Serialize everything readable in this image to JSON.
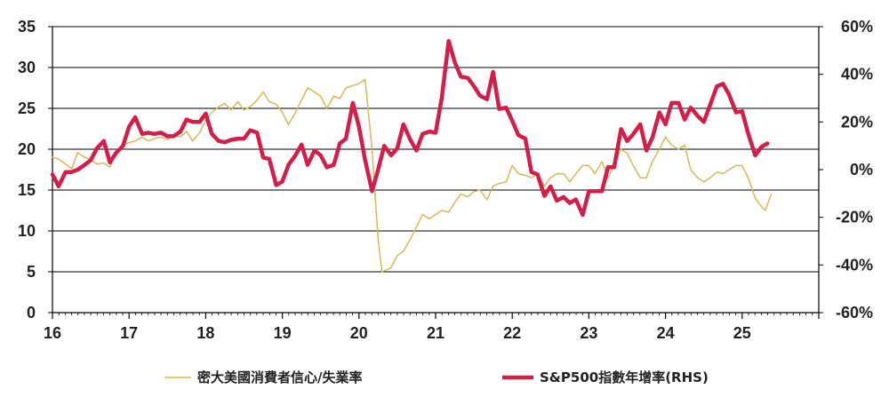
{
  "chart_data": {
    "type": "line",
    "x_ticks": [
      "16",
      "17",
      "18",
      "19",
      "20",
      "21",
      "22",
      "23",
      "24",
      "25"
    ],
    "y_left": {
      "ticks": [
        "0",
        "5",
        "10",
        "15",
        "20",
        "25",
        "30",
        "35"
      ],
      "range": [
        0,
        35
      ]
    },
    "y_right": {
      "ticks": [
        "-60%",
        "-40%",
        "-20%",
        "0%",
        "20%",
        "40%",
        "60%"
      ],
      "range": [
        -60,
        60
      ]
    },
    "x_range": [
      2016.0,
      2026.0
    ],
    "grid": "horizontal",
    "legend_position": "bottom",
    "series": [
      {
        "name": "密大美國消費者信心/失業率",
        "axis": "left",
        "color": "#d4b95a",
        "width": 1.5,
        "points": [
          [
            2016.0,
            19.0
          ],
          [
            2016.08,
            18.8
          ],
          [
            2016.17,
            18.2
          ],
          [
            2016.25,
            17.6
          ],
          [
            2016.33,
            19.6
          ],
          [
            2016.42,
            19.0
          ],
          [
            2016.5,
            18.7
          ],
          [
            2016.58,
            18.2
          ],
          [
            2016.67,
            18.3
          ],
          [
            2016.75,
            17.8
          ],
          [
            2016.83,
            19.5
          ],
          [
            2016.92,
            20.5
          ],
          [
            2017.0,
            20.8
          ],
          [
            2017.08,
            21.0
          ],
          [
            2017.17,
            21.5
          ],
          [
            2017.25,
            21.0
          ],
          [
            2017.33,
            21.3
          ],
          [
            2017.42,
            21.5
          ],
          [
            2017.5,
            21.2
          ],
          [
            2017.58,
            21.7
          ],
          [
            2017.67,
            21.5
          ],
          [
            2017.75,
            22.2
          ],
          [
            2017.83,
            21.0
          ],
          [
            2017.92,
            22.0
          ],
          [
            2018.0,
            23.5
          ],
          [
            2018.08,
            24.5
          ],
          [
            2018.17,
            25.2
          ],
          [
            2018.25,
            25.6
          ],
          [
            2018.33,
            24.8
          ],
          [
            2018.42,
            25.8
          ],
          [
            2018.5,
            24.8
          ],
          [
            2018.58,
            25.2
          ],
          [
            2018.67,
            26.0
          ],
          [
            2018.75,
            27.0
          ],
          [
            2018.83,
            25.8
          ],
          [
            2018.92,
            25.5
          ],
          [
            2019.0,
            24.5
          ],
          [
            2019.08,
            23.0
          ],
          [
            2019.17,
            24.5
          ],
          [
            2019.25,
            26.0
          ],
          [
            2019.33,
            27.5
          ],
          [
            2019.42,
            27.0
          ],
          [
            2019.5,
            26.5
          ],
          [
            2019.58,
            25.0
          ],
          [
            2019.67,
            26.5
          ],
          [
            2019.75,
            26.2
          ],
          [
            2019.83,
            27.5
          ],
          [
            2019.92,
            27.8
          ],
          [
            2020.0,
            28.0
          ],
          [
            2020.08,
            28.5
          ],
          [
            2020.17,
            20.0
          ],
          [
            2020.25,
            9.0
          ],
          [
            2020.3,
            5.0
          ],
          [
            2020.42,
            5.5
          ],
          [
            2020.5,
            7.0
          ],
          [
            2020.58,
            7.5
          ],
          [
            2020.67,
            9.0
          ],
          [
            2020.75,
            10.5
          ],
          [
            2020.83,
            12.0
          ],
          [
            2020.92,
            11.5
          ],
          [
            2021.0,
            12.0
          ],
          [
            2021.08,
            12.5
          ],
          [
            2021.17,
            12.3
          ],
          [
            2021.25,
            13.5
          ],
          [
            2021.33,
            14.5
          ],
          [
            2021.42,
            14.2
          ],
          [
            2021.5,
            14.8
          ],
          [
            2021.58,
            15.0
          ],
          [
            2021.67,
            13.8
          ],
          [
            2021.75,
            15.5
          ],
          [
            2021.83,
            15.8
          ],
          [
            2021.92,
            16.0
          ],
          [
            2022.0,
            18.0
          ],
          [
            2022.08,
            17.0
          ],
          [
            2022.17,
            16.8
          ],
          [
            2022.25,
            16.5
          ],
          [
            2022.33,
            17.0
          ],
          [
            2022.42,
            15.5
          ],
          [
            2022.5,
            16.5
          ],
          [
            2022.58,
            17.0
          ],
          [
            2022.67,
            17.0
          ],
          [
            2022.75,
            16.0
          ],
          [
            2022.83,
            17.0
          ],
          [
            2022.92,
            18.0
          ],
          [
            2023.0,
            18.0
          ],
          [
            2023.08,
            17.0
          ],
          [
            2023.17,
            18.5
          ],
          [
            2023.25,
            16.5
          ],
          [
            2023.33,
            18.0
          ],
          [
            2023.42,
            20.0
          ],
          [
            2023.5,
            19.5
          ],
          [
            2023.58,
            18.0
          ],
          [
            2023.67,
            16.5
          ],
          [
            2023.75,
            16.5
          ],
          [
            2023.83,
            18.5
          ],
          [
            2023.92,
            20.0
          ],
          [
            2024.0,
            21.5
          ],
          [
            2024.08,
            20.5
          ],
          [
            2024.17,
            20.0
          ],
          [
            2024.25,
            20.5
          ],
          [
            2024.33,
            17.5
          ],
          [
            2024.42,
            16.5
          ],
          [
            2024.5,
            16.0
          ],
          [
            2024.58,
            16.5
          ],
          [
            2024.67,
            17.2
          ],
          [
            2024.75,
            17.0
          ],
          [
            2024.83,
            17.5
          ],
          [
            2024.92,
            18.0
          ],
          [
            2025.0,
            18.0
          ],
          [
            2025.08,
            16.5
          ],
          [
            2025.17,
            14.0
          ],
          [
            2025.25,
            13.0
          ],
          [
            2025.3,
            12.5
          ],
          [
            2025.38,
            14.5
          ]
        ]
      },
      {
        "name": "S&P500指數年增率(RHS)",
        "axis": "right",
        "color": "#d21f4a",
        "width": 4.5,
        "points": [
          [
            2016.0,
            -2.0
          ],
          [
            2016.08,
            -7.0
          ],
          [
            2016.17,
            -1.0
          ],
          [
            2016.25,
            -1.0
          ],
          [
            2016.33,
            0.0
          ],
          [
            2016.42,
            2.0
          ],
          [
            2016.5,
            4.0
          ],
          [
            2016.58,
            9.0
          ],
          [
            2016.67,
            12.0
          ],
          [
            2016.75,
            3.0
          ],
          [
            2016.83,
            7.0
          ],
          [
            2016.92,
            10.0
          ],
          [
            2017.0,
            18.0
          ],
          [
            2017.08,
            22.0
          ],
          [
            2017.17,
            15.0
          ],
          [
            2017.25,
            15.5
          ],
          [
            2017.33,
            15.0
          ],
          [
            2017.42,
            15.5
          ],
          [
            2017.5,
            14.0
          ],
          [
            2017.58,
            14.0
          ],
          [
            2017.67,
            16.0
          ],
          [
            2017.75,
            21.0
          ],
          [
            2017.83,
            20.0
          ],
          [
            2017.92,
            20.0
          ],
          [
            2018.0,
            23.5
          ],
          [
            2018.08,
            15.0
          ],
          [
            2018.17,
            12.0
          ],
          [
            2018.25,
            11.5
          ],
          [
            2018.33,
            12.5
          ],
          [
            2018.42,
            13.0
          ],
          [
            2018.5,
            13.0
          ],
          [
            2018.58,
            16.5
          ],
          [
            2018.67,
            15.5
          ],
          [
            2018.75,
            5.0
          ],
          [
            2018.83,
            4.5
          ],
          [
            2018.92,
            -6.5
          ],
          [
            2019.0,
            -5.0
          ],
          [
            2019.08,
            2.0
          ],
          [
            2019.17,
            6.0
          ],
          [
            2019.25,
            10.5
          ],
          [
            2019.33,
            2.0
          ],
          [
            2019.42,
            8.0
          ],
          [
            2019.5,
            6.0
          ],
          [
            2019.58,
            1.0
          ],
          [
            2019.67,
            2.0
          ],
          [
            2019.75,
            11.0
          ],
          [
            2019.83,
            13.0
          ],
          [
            2019.92,
            28.0
          ],
          [
            2020.0,
            18.0
          ],
          [
            2020.08,
            4.0
          ],
          [
            2020.17,
            -9.0
          ],
          [
            2020.25,
            0.0
          ],
          [
            2020.33,
            10.0
          ],
          [
            2020.42,
            6.0
          ],
          [
            2020.5,
            9.0
          ],
          [
            2020.58,
            19.0
          ],
          [
            2020.67,
            12.5
          ],
          [
            2020.75,
            8.0
          ],
          [
            2020.83,
            15.0
          ],
          [
            2020.92,
            16.0
          ],
          [
            2021.0,
            15.5
          ],
          [
            2021.08,
            30.0
          ],
          [
            2021.17,
            54.0
          ],
          [
            2021.25,
            45.0
          ],
          [
            2021.33,
            39.0
          ],
          [
            2021.42,
            38.5
          ],
          [
            2021.5,
            35.0
          ],
          [
            2021.58,
            31.0
          ],
          [
            2021.67,
            29.5
          ],
          [
            2021.75,
            41.0
          ],
          [
            2021.83,
            25.5
          ],
          [
            2021.92,
            26.0
          ],
          [
            2022.0,
            20.5
          ],
          [
            2022.08,
            14.5
          ],
          [
            2022.17,
            13.0
          ],
          [
            2022.25,
            -1.0
          ],
          [
            2022.33,
            -2.0
          ],
          [
            2022.42,
            -11.0
          ],
          [
            2022.5,
            -7.0
          ],
          [
            2022.58,
            -13.0
          ],
          [
            2022.67,
            -11.5
          ],
          [
            2022.75,
            -14.0
          ],
          [
            2022.83,
            -12.5
          ],
          [
            2022.92,
            -19.0
          ],
          [
            2023.0,
            -9.0
          ],
          [
            2023.08,
            -9.0
          ],
          [
            2023.17,
            -9.0
          ],
          [
            2023.25,
            1.0
          ],
          [
            2023.33,
            1.0
          ],
          [
            2023.42,
            17.0
          ],
          [
            2023.5,
            12.0
          ],
          [
            2023.58,
            15.0
          ],
          [
            2023.67,
            19.0
          ],
          [
            2023.75,
            8.0
          ],
          [
            2023.83,
            13.5
          ],
          [
            2023.92,
            24.0
          ],
          [
            2024.0,
            19.0
          ],
          [
            2024.08,
            28.0
          ],
          [
            2024.17,
            28.0
          ],
          [
            2024.25,
            21.0
          ],
          [
            2024.33,
            26.0
          ],
          [
            2024.42,
            22.5
          ],
          [
            2024.5,
            20.0
          ],
          [
            2024.58,
            27.0
          ],
          [
            2024.67,
            35.0
          ],
          [
            2024.75,
            36.0
          ],
          [
            2024.83,
            31.5
          ],
          [
            2024.92,
            24.0
          ],
          [
            2025.0,
            24.5
          ],
          [
            2025.08,
            15.0
          ],
          [
            2025.17,
            6.0
          ],
          [
            2025.25,
            9.5
          ],
          [
            2025.33,
            11.0
          ]
        ]
      }
    ]
  }
}
